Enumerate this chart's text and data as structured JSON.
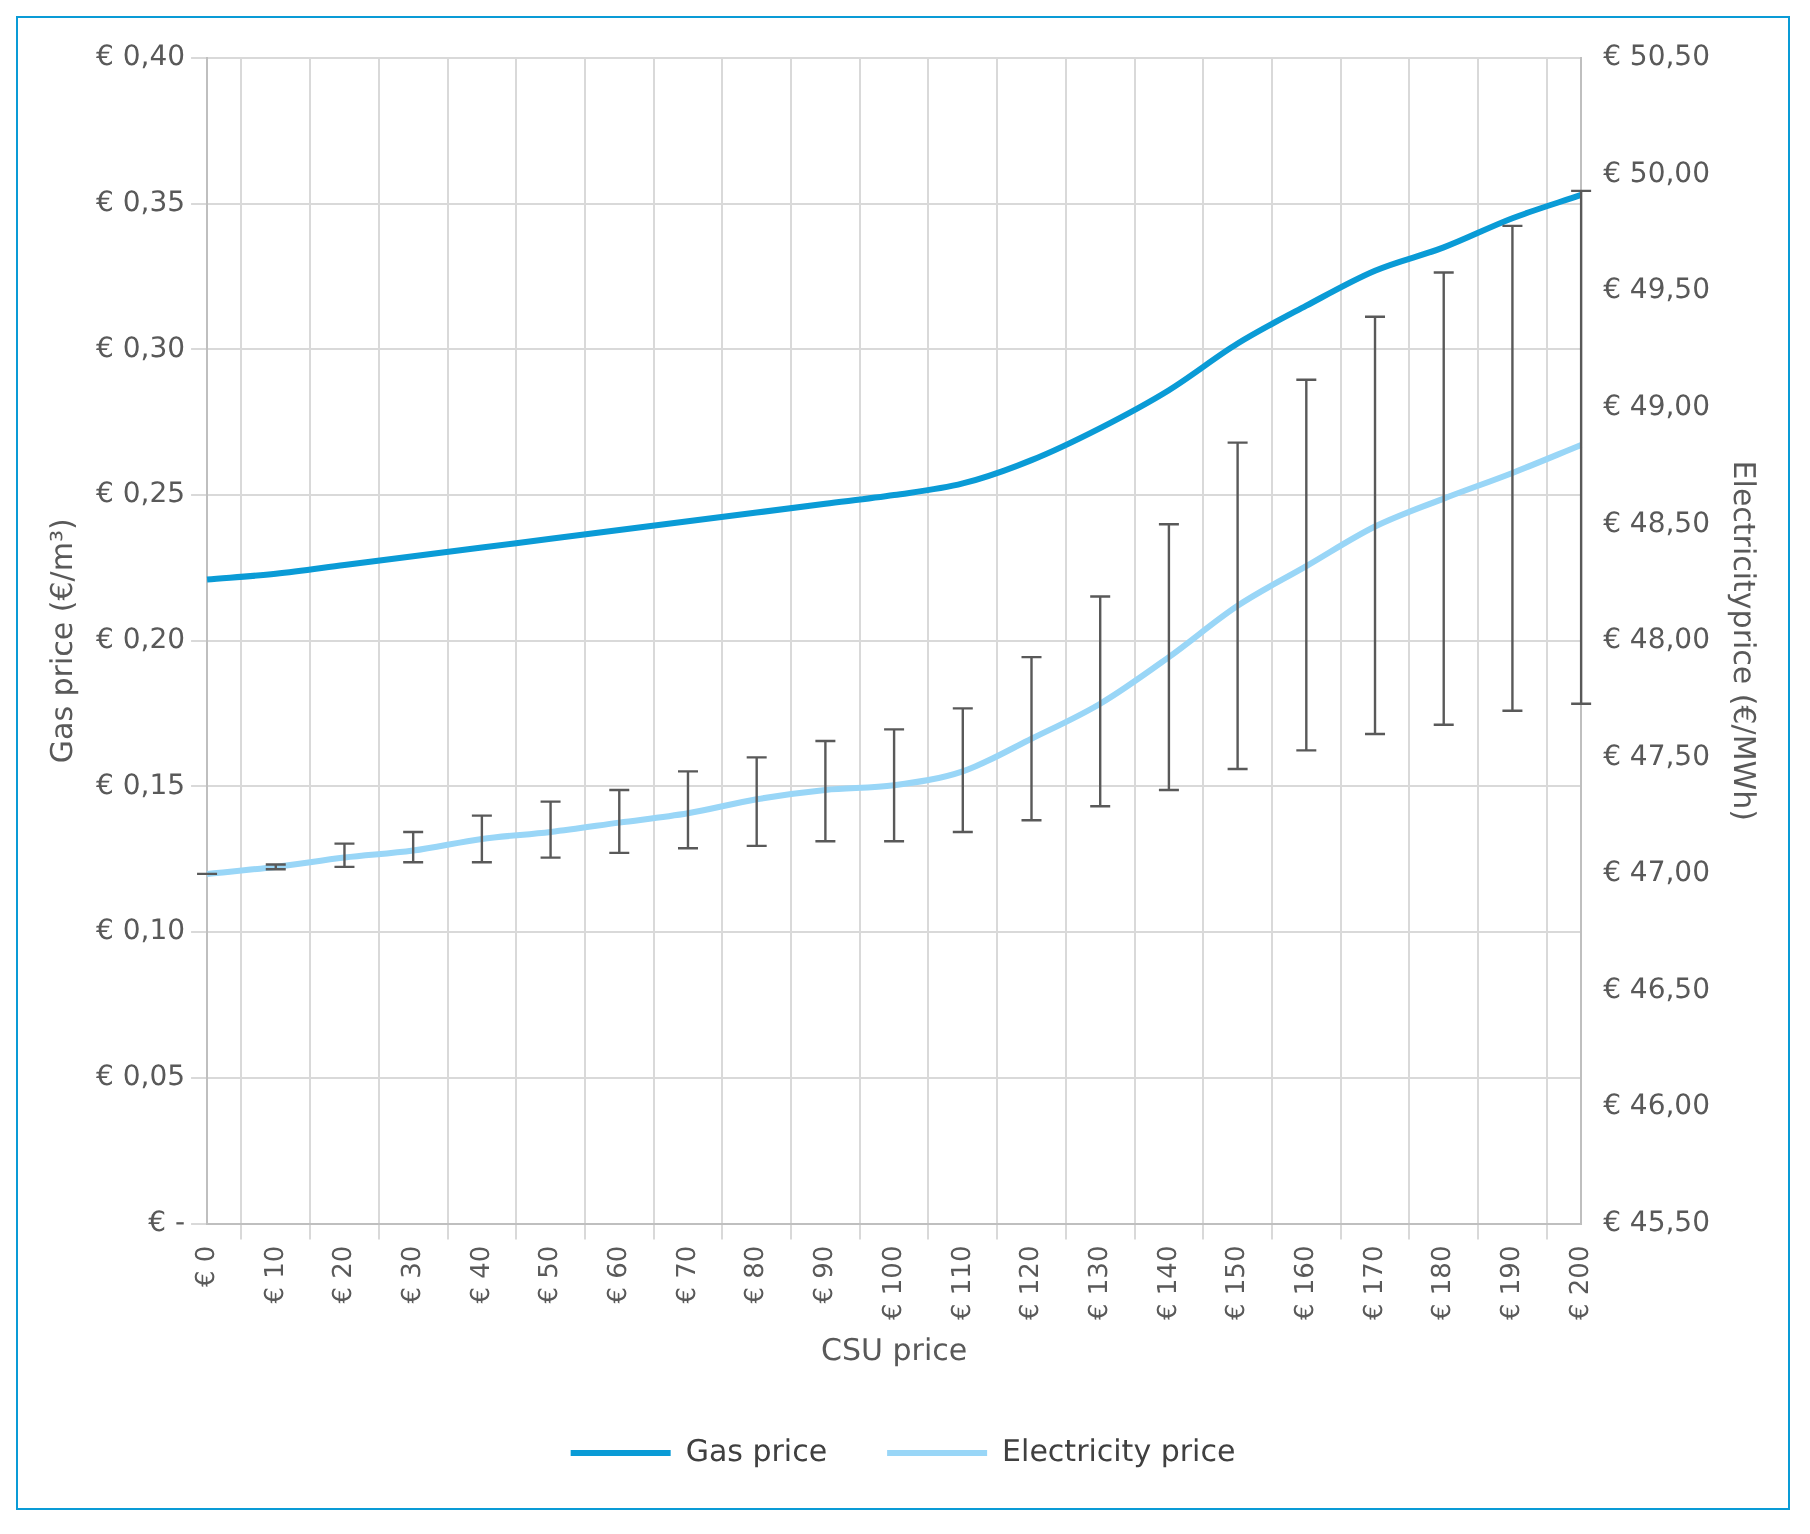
{
  "chart_data": {
    "type": "line",
    "xlabel": "CSU price",
    "ylabel": "Gas price (€/m³)",
    "y2label": "Electricityprice (€/MWh)",
    "categories": [
      "€ 0",
      "€ 10",
      "€ 20",
      "€ 30",
      "€ 40",
      "€ 50",
      "€ 60",
      "€ 70",
      "€ 80",
      "€ 90",
      "€ 100",
      "€ 110",
      "€ 120",
      "€ 130",
      "€ 140",
      "€ 150",
      "€ 160",
      "€ 170",
      "€ 180",
      "€ 190",
      "€ 200"
    ],
    "series": [
      {
        "name": "Gas price",
        "color": "#0a9bd6",
        "values": [
          0.221,
          0.223,
          0.226,
          0.229,
          0.232,
          0.235,
          0.238,
          0.241,
          0.244,
          0.247,
          0.25,
          0.254,
          0.262,
          0.273,
          0.286,
          0.302,
          0.315,
          0.327,
          0.335,
          0.345,
          0.353
        ]
      },
      {
        "name": "Electricity price",
        "color": "#99d6f7",
        "axis": "y2",
        "values": [
          47.0,
          47.03,
          47.07,
          47.1,
          47.15,
          47.18,
          47.22,
          47.26,
          47.32,
          47.36,
          47.38,
          47.44,
          47.58,
          47.73,
          47.93,
          48.15,
          48.32,
          48.49,
          48.61,
          48.72,
          48.84
        ],
        "errors": [
          [
            47.0,
            47.0
          ],
          [
            47.02,
            47.04
          ],
          [
            47.03,
            47.13
          ],
          [
            47.05,
            47.18
          ],
          [
            47.05,
            47.25
          ],
          [
            47.07,
            47.31
          ],
          [
            47.09,
            47.36
          ],
          [
            47.11,
            47.44
          ],
          [
            47.12,
            47.5
          ],
          [
            47.14,
            47.57
          ],
          [
            47.14,
            47.62
          ],
          [
            47.18,
            47.71
          ],
          [
            47.23,
            47.93
          ],
          [
            47.29,
            48.19
          ],
          [
            47.36,
            48.5
          ],
          [
            47.45,
            48.85
          ],
          [
            47.53,
            49.12
          ],
          [
            47.6,
            49.39
          ],
          [
            47.64,
            49.58
          ],
          [
            47.7,
            49.78
          ],
          [
            47.73,
            49.93
          ]
        ]
      }
    ],
    "ylim": [
      0,
      0.4
    ],
    "yticks": [
      {
        "value": 0,
        "label": "€ -"
      },
      {
        "value": 0.05,
        "label": "€ 0,05"
      },
      {
        "value": 0.1,
        "label": "€ 0,10"
      },
      {
        "value": 0.15,
        "label": "€ 0,15"
      },
      {
        "value": 0.2,
        "label": "€ 0,20"
      },
      {
        "value": 0.25,
        "label": "€ 0,25"
      },
      {
        "value": 0.3,
        "label": "€ 0,30"
      },
      {
        "value": 0.35,
        "label": "€ 0,35"
      },
      {
        "value": 0.4,
        "label": "€ 0,40"
      }
    ],
    "y2lim": [
      45.5,
      50.5
    ],
    "y2ticks": [
      {
        "value": 45.5,
        "label": "€ 45,50"
      },
      {
        "value": 46,
        "label": "€ 46,00"
      },
      {
        "value": 46.5,
        "label": "€ 46,50"
      },
      {
        "value": 47,
        "label": "€ 47,00"
      },
      {
        "value": 47.5,
        "label": "€ 47,50"
      },
      {
        "value": 48,
        "label": "€ 48,00"
      },
      {
        "value": 48.5,
        "label": "€ 48,50"
      },
      {
        "value": 49,
        "label": "€ 49,00"
      },
      {
        "value": 49.5,
        "label": "€ 49,50"
      },
      {
        "value": 50,
        "label": "€ 50,00"
      },
      {
        "value": 50.5,
        "label": "€ 50,50"
      }
    ],
    "grid": true,
    "legend": "bottom",
    "marker": "none",
    "line_style": "solid"
  }
}
